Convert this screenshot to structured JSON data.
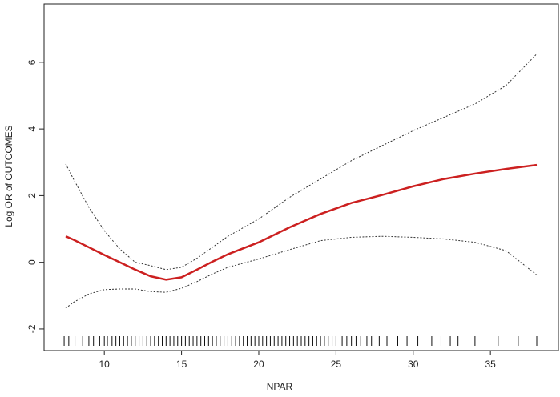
{
  "chart_data": {
    "type": "line",
    "xlabel": "NPAR",
    "ylabel": "Log OR of OUTCOMES",
    "x": [
      7.5,
      8,
      9,
      10,
      11,
      12,
      13,
      14,
      15,
      16,
      17,
      18,
      20,
      22,
      24,
      26,
      28,
      30,
      32,
      34,
      36,
      38
    ],
    "series": [
      {
        "color": "#cc2020",
        "style": "solid",
        "values": [
          0.78,
          0.68,
          0.45,
          0.22,
          0.0,
          -0.22,
          -0.42,
          -0.52,
          -0.45,
          -0.22,
          0.02,
          0.24,
          0.6,
          1.05,
          1.45,
          1.78,
          2.02,
          2.28,
          2.5,
          2.66,
          2.8,
          2.92
        ]
      },
      {
        "color": "#333333",
        "style": "dotted",
        "values": [
          2.95,
          2.5,
          1.65,
          0.95,
          0.4,
          0.0,
          -0.1,
          -0.22,
          -0.15,
          0.12,
          0.45,
          0.78,
          1.3,
          1.95,
          2.5,
          3.05,
          3.5,
          3.95,
          4.35,
          4.75,
          5.3,
          6.25
        ]
      },
      {
        "color": "#333333",
        "style": "dotted",
        "values": [
          -1.38,
          -1.2,
          -0.95,
          -0.82,
          -0.8,
          -0.8,
          -0.88,
          -0.9,
          -0.78,
          -0.58,
          -0.35,
          -0.15,
          0.1,
          0.38,
          0.65,
          0.75,
          0.78,
          0.75,
          0.7,
          0.6,
          0.35,
          -0.38
        ]
      }
    ],
    "rug": [
      7.4,
      7.7,
      8.1,
      8.6,
      9.0,
      9.3,
      9.7,
      10.0,
      10.2,
      10.5,
      10.75,
      11,
      11.25,
      11.5,
      11.75,
      12,
      12.25,
      12.5,
      12.75,
      13,
      13.25,
      13.5,
      13.75,
      14,
      14.25,
      14.5,
      14.75,
      15,
      15.25,
      15.5,
      15.75,
      16,
      16.25,
      16.5,
      16.75,
      17,
      17.25,
      17.5,
      17.75,
      18,
      18.25,
      18.5,
      18.75,
      19,
      19.25,
      19.5,
      19.75,
      20,
      20.25,
      20.5,
      20.75,
      21,
      21.25,
      21.5,
      21.75,
      22,
      22.25,
      22.5,
      22.75,
      23,
      23.25,
      23.5,
      23.75,
      24,
      24.25,
      24.5,
      24.75,
      25,
      25.4,
      25.7,
      26.0,
      26.3,
      26.6,
      27.0,
      27.3,
      27.8,
      28.3,
      29.0,
      29.6,
      30.3,
      31.2,
      31.8,
      32.4,
      32.9,
      34.0,
      35.5,
      36.8,
      38.0
    ],
    "xlim": [
      6.1,
      39.4
    ],
    "ylim": [
      -2.65,
      7.75
    ],
    "xticks": [
      10,
      15,
      20,
      25,
      30,
      35
    ],
    "yticks": [
      -2,
      0,
      2,
      4,
      6
    ]
  }
}
